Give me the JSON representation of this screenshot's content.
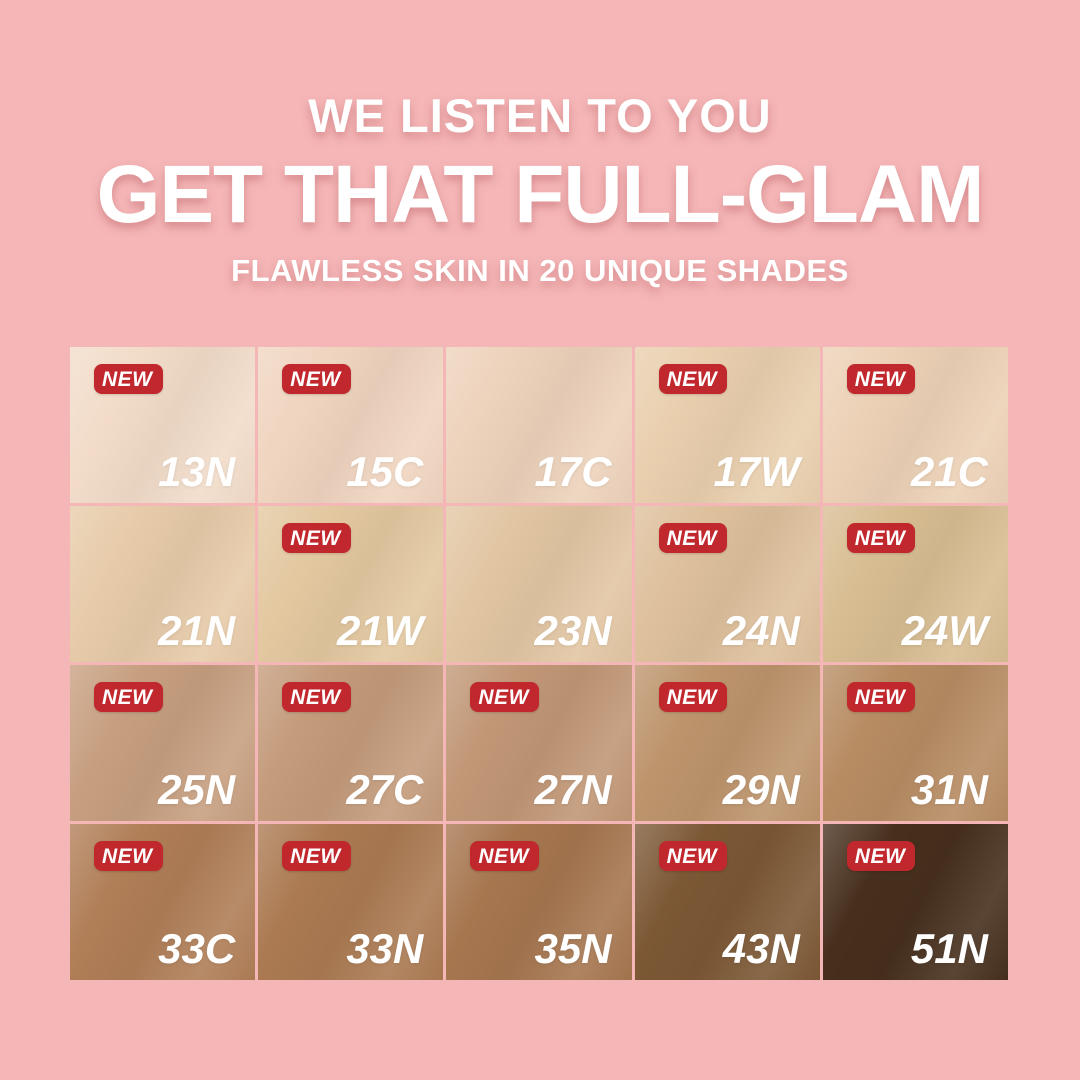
{
  "page": {
    "background": "#f5b6b7"
  },
  "header": {
    "kicker": "WE LISTEN TO YOU",
    "title": "GET THAT FULL-GLAM",
    "subtitle": "FLAWLESS SKIN IN 20 UNIQUE SHADES",
    "text_color": "#ffffff"
  },
  "badge": {
    "label": "NEW",
    "background": "#c0282d",
    "text_color": "#ffffff"
  },
  "grid": {
    "columns": 5,
    "rows": 4,
    "shade_label_color": "#ffffff",
    "swatches": [
      {
        "code": "13N",
        "new": true,
        "color": "#f2dcc9"
      },
      {
        "code": "15C",
        "new": true,
        "color": "#f0d5c0"
      },
      {
        "code": "17C",
        "new": false,
        "color": "#edd2bb"
      },
      {
        "code": "17W",
        "new": true,
        "color": "#e9cfae"
      },
      {
        "code": "21C",
        "new": true,
        "color": "#ecd1b6"
      },
      {
        "code": "21N",
        "new": false,
        "color": "#e7cba9"
      },
      {
        "code": "21W",
        "new": true,
        "color": "#e3c8a0"
      },
      {
        "code": "23N",
        "new": false,
        "color": "#e2c6a3"
      },
      {
        "code": "24N",
        "new": true,
        "color": "#dec09c"
      },
      {
        "code": "24W",
        "new": true,
        "color": "#d8bd92"
      },
      {
        "code": "25N",
        "new": true,
        "color": "#c79f80"
      },
      {
        "code": "27C",
        "new": true,
        "color": "#c49b7b"
      },
      {
        "code": "27N",
        "new": true,
        "color": "#c19776"
      },
      {
        "code": "29N",
        "new": true,
        "color": "#bd946c"
      },
      {
        "code": "31N",
        "new": true,
        "color": "#b78c63"
      },
      {
        "code": "33C",
        "new": true,
        "color": "#b07e57"
      },
      {
        "code": "33N",
        "new": true,
        "color": "#ab7a52"
      },
      {
        "code": "35N",
        "new": true,
        "color": "#a6764f"
      },
      {
        "code": "43N",
        "new": true,
        "color": "#7c5835"
      },
      {
        "code": "51N",
        "new": true,
        "color": "#472f1d"
      }
    ]
  }
}
